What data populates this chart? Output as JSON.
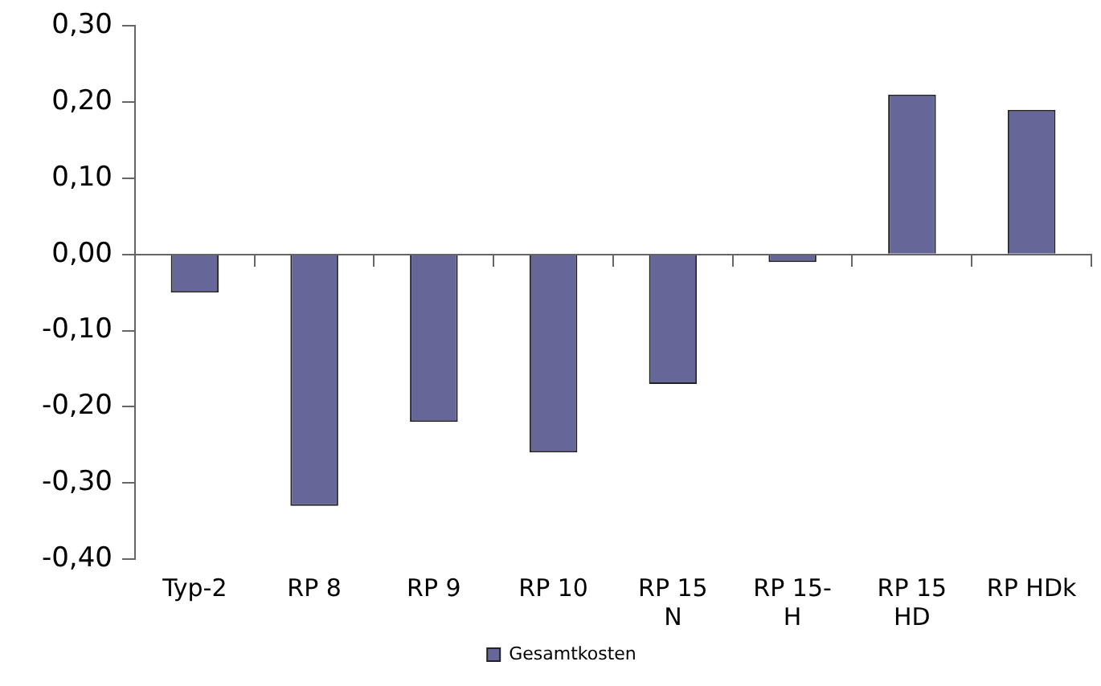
{
  "chart_data": {
    "type": "bar",
    "categories": [
      "Typ-2",
      "RP 8",
      "RP 9",
      "RP 10",
      "RP 15 N",
      "RP 15-H",
      "RP 15 HD",
      "RP HDk"
    ],
    "series": [
      {
        "name": "Gesamtkosten",
        "color": "#666699",
        "values": [
          -0.05,
          -0.33,
          -0.22,
          -0.26,
          -0.17,
          -0.01,
          0.21,
          0.19
        ]
      }
    ],
    "ylim": [
      -0.4,
      0.3
    ],
    "yticks": [
      {
        "value": -0.4,
        "label": "-0,40"
      },
      {
        "value": -0.3,
        "label": "-0,30"
      },
      {
        "value": -0.2,
        "label": "-0,20"
      },
      {
        "value": -0.1,
        "label": "-0,10"
      },
      {
        "value": 0,
        "label": "0,00"
      },
      {
        "value": 0.1,
        "label": "0,10"
      },
      {
        "value": 0.2,
        "label": "0,20"
      },
      {
        "value": 0.3,
        "label": "0,30"
      }
    ],
    "legend": "bottom"
  }
}
